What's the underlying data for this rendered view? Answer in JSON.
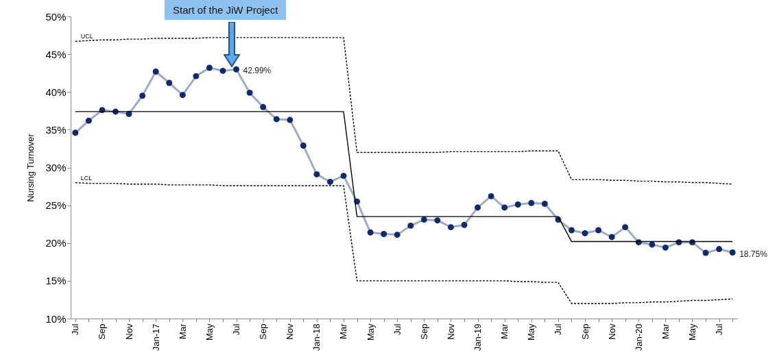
{
  "chart_data": {
    "type": "line",
    "ylabel": "Nursing Turnover",
    "categories": [
      "Jul",
      null,
      "Sep",
      null,
      "Nov",
      null,
      "Jan-17",
      null,
      "Mar",
      null,
      "May",
      null,
      "Jul",
      null,
      "Sep",
      null,
      "Nov",
      null,
      "Jan-18",
      null,
      "Mar",
      null,
      "May",
      null,
      "Jul",
      null,
      "Sep",
      null,
      "Nov",
      null,
      "Jan-19",
      null,
      "Mar",
      null,
      "May",
      null,
      "Jul",
      null,
      "Sep",
      null,
      "Nov",
      null,
      "Jan-20",
      null,
      "Mar",
      null,
      "May",
      null,
      "Jul",
      null
    ],
    "ylim": [
      10,
      50
    ],
    "yticks": [
      {
        "value": 10,
        "label": "10%"
      },
      {
        "value": 15,
        "label": "15%"
      },
      {
        "value": 20,
        "label": "20%"
      },
      {
        "value": 25,
        "label": "25%"
      },
      {
        "value": 30,
        "label": "30%"
      },
      {
        "value": 35,
        "label": "35%"
      },
      {
        "value": 40,
        "label": "40%"
      },
      {
        "value": 45,
        "label": "45%"
      },
      {
        "value": 50,
        "label": "50%"
      }
    ],
    "annotations": [
      "Start of the JiW Project"
    ],
    "series": [
      {
        "color": "#0e2a72",
        "marker": "circle",
        "line_style": "solid",
        "values": [
          34.6,
          36.2,
          37.6,
          37.4,
          37.1,
          39.5,
          42.7,
          41.2,
          39.6,
          42.1,
          43.2,
          42.8,
          42.99,
          39.9,
          38.0,
          36.4,
          36.3,
          32.9,
          29.1,
          28.1,
          28.9,
          25.5,
          21.4,
          21.2,
          21.1,
          22.3,
          23.1,
          23.0,
          22.1,
          22.4,
          24.7,
          26.2,
          24.7,
          25.1,
          25.3,
          25.2,
          23.1,
          21.7,
          21.3,
          21.7,
          20.8,
          22.1,
          20.1,
          19.8,
          19.4,
          20.1,
          20.1,
          18.7,
          19.2,
          18.75
        ],
        "value_labels": [
          null,
          null,
          null,
          null,
          null,
          null,
          null,
          null,
          null,
          null,
          null,
          null,
          "42.99%",
          null,
          null,
          null,
          null,
          null,
          null,
          null,
          null,
          null,
          null,
          null,
          null,
          null,
          null,
          null,
          null,
          null,
          null,
          null,
          null,
          null,
          null,
          null,
          null,
          null,
          null,
          null,
          null,
          null,
          null,
          null,
          null,
          null,
          null,
          null,
          null,
          "18.75%"
        ]
      },
      {
        "color": "#000000",
        "marker": "none",
        "line_style": "solid",
        "values": [
          37.4,
          37.4,
          37.4,
          37.4,
          37.4,
          37.4,
          37.4,
          37.4,
          37.4,
          37.4,
          37.4,
          37.4,
          37.4,
          37.4,
          37.4,
          37.4,
          37.4,
          37.4,
          37.4,
          37.4,
          37.4,
          23.5,
          23.5,
          23.5,
          23.5,
          23.5,
          23.5,
          23.5,
          23.5,
          23.5,
          23.5,
          23.5,
          23.5,
          23.5,
          23.5,
          23.5,
          23.5,
          20.2,
          20.2,
          20.2,
          20.2,
          20.2,
          20.2,
          20.2,
          20.2,
          20.2,
          20.2,
          20.2,
          20.2,
          20.2
        ]
      },
      {
        "name": "UCL",
        "color": "#000000",
        "marker": "none",
        "line_style": "dashed",
        "values": [
          46.7,
          46.8,
          46.9,
          46.9,
          47.0,
          47.0,
          47.1,
          47.1,
          47.1,
          47.1,
          47.2,
          47.2,
          47.2,
          47.2,
          47.2,
          47.2,
          47.2,
          47.2,
          47.2,
          47.2,
          47.2,
          32.0,
          32.0,
          32.0,
          32.0,
          32.0,
          32.0,
          32.0,
          32.1,
          32.1,
          32.1,
          32.1,
          32.1,
          32.1,
          32.2,
          32.2,
          32.2,
          28.4,
          28.4,
          28.4,
          28.3,
          28.3,
          28.2,
          28.2,
          28.1,
          28.1,
          28.0,
          28.0,
          27.9,
          27.8
        ]
      },
      {
        "name": "LCL",
        "color": "#000000",
        "marker": "none",
        "line_style": "dashed",
        "values": [
          28.0,
          27.9,
          27.9,
          27.9,
          27.8,
          27.8,
          27.8,
          27.7,
          27.7,
          27.7,
          27.7,
          27.6,
          27.6,
          27.6,
          27.6,
          27.6,
          27.6,
          27.6,
          27.6,
          27.6,
          27.6,
          15.0,
          15.0,
          15.0,
          15.0,
          15.0,
          15.0,
          15.0,
          15.0,
          15.0,
          15.0,
          15.0,
          15.0,
          14.9,
          14.9,
          14.8,
          14.8,
          12.0,
          12.0,
          12.0,
          12.0,
          12.1,
          12.1,
          12.2,
          12.2,
          12.3,
          12.4,
          12.4,
          12.5,
          12.6
        ]
      }
    ]
  }
}
